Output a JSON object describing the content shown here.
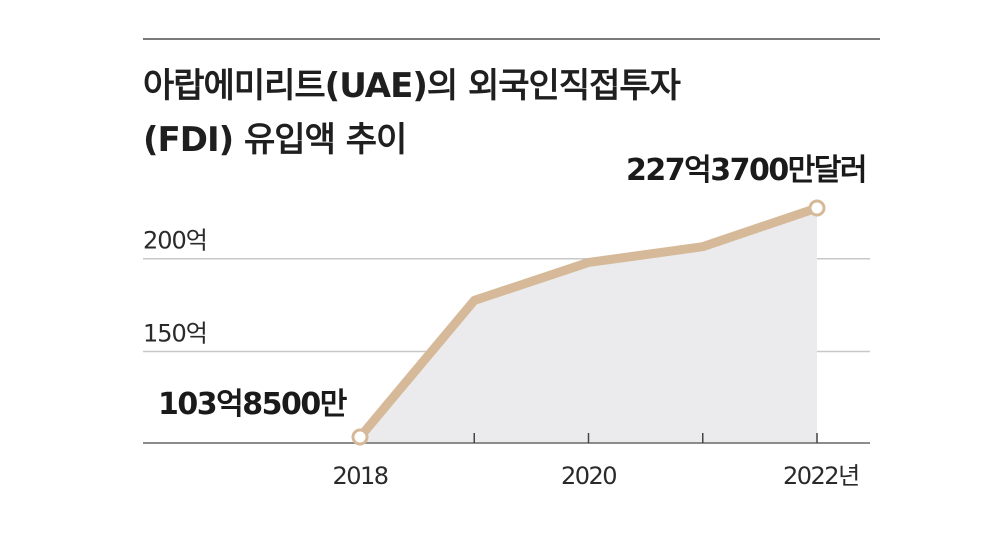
{
  "chart_data": {
    "type": "area",
    "title_lines": [
      "아랍에미리트(UAE)의 외국인직접투자",
      "(FDI) 유입액 추이"
    ],
    "x": [
      2018,
      2019,
      2020,
      2021,
      2022
    ],
    "x_tick_labels": [
      {
        "x": 2018,
        "label": "2018"
      },
      {
        "x": 2020,
        "label": "2020"
      },
      {
        "x": 2022,
        "label": "2022년"
      }
    ],
    "y_tick_labels": [
      {
        "y": 150,
        "label": "150억"
      },
      {
        "y": 200,
        "label": "200억"
      }
    ],
    "series": [
      {
        "values": [
          103.85,
          177.5,
          198.0,
          206.5,
          227.37
        ]
      }
    ],
    "annotations": [
      {
        "x": 2018,
        "y": 103.85,
        "label": "103억8500만"
      },
      {
        "x": 2022,
        "y": 227.37,
        "label": "227억3700만달러"
      }
    ],
    "ylim": [
      103.85,
      227.37
    ],
    "grid": true,
    "colors": {
      "line": "#d6b999",
      "area": "#ebebed",
      "marker_fill": "#ffffff",
      "grid": "#c8c8c8",
      "axis": "#8c8c8c"
    }
  }
}
